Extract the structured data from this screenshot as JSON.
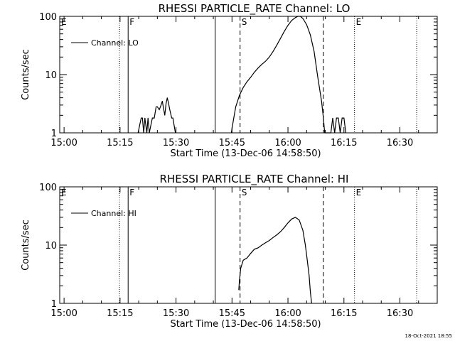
{
  "footer_stamp": "18-Oct-2021 18:55",
  "chart_data": [
    {
      "type": "line",
      "title": "RHESSI PARTICLE_RATE Channel: LO",
      "xlabel": "Start Time (13-Dec-06 14:58:50)",
      "ylabel": "Counts/sec",
      "yscale": "log",
      "ylim": [
        1,
        100
      ],
      "xlim": [
        "14:58:50",
        "16:40:00"
      ],
      "x_ticks": [
        "15:00",
        "15:15",
        "15:30",
        "15:45",
        "16:00",
        "16:15",
        "16:30"
      ],
      "y_ticks": [
        "1",
        "10",
        "100"
      ],
      "legend": {
        "label": "Channel: LO",
        "placement": "top-left"
      },
      "markers": [
        {
          "label": "E",
          "time": "14:58:50",
          "style": "dotted"
        },
        {
          "label": "",
          "time": "15:14:50",
          "style": "dotted"
        },
        {
          "label": "F",
          "time": "15:17:10",
          "style": "solid"
        },
        {
          "label": "",
          "time": "15:40:30",
          "style": "solid"
        },
        {
          "label": "S",
          "time": "15:47:10",
          "style": "dashed"
        },
        {
          "label": "",
          "time": "16:09:30",
          "style": "dashed"
        },
        {
          "label": "E",
          "time": "16:17:50",
          "style": "dotted"
        },
        {
          "label": "",
          "time": "16:34:30",
          "style": "dotted"
        }
      ],
      "series": [
        {
          "name": "Channel: LO",
          "x": [
            "15:19:50",
            "15:20:40",
            "15:21:00",
            "15:21:20",
            "15:21:40",
            "15:22:10",
            "15:22:30",
            "15:22:50",
            "15:23:40",
            "15:24:10",
            "15:24:40",
            "15:25:00",
            "15:25:30",
            "15:25:50",
            "15:26:20",
            "15:26:40",
            "15:27:00",
            "15:27:20",
            "15:27:40",
            "15:28:00",
            "15:28:20",
            "15:28:50",
            "15:29:10",
            "15:29:50",
            "15:44:50",
            "15:45:20",
            "15:46:00",
            "15:47:00",
            "15:48:00",
            "15:49:00",
            "15:50:00",
            "15:51:00",
            "15:52:00",
            "15:53:00",
            "15:54:00",
            "15:55:00",
            "15:56:00",
            "15:57:00",
            "15:58:00",
            "15:59:00",
            "16:00:00",
            "16:01:00",
            "16:02:00",
            "16:02:40",
            "16:03:20",
            "16:04:00",
            "16:05:00",
            "16:06:00",
            "16:07:00",
            "16:08:00",
            "16:09:00",
            "16:09:30",
            "16:09:50",
            "16:11:30",
            "16:12:00",
            "16:12:30",
            "16:13:00",
            "16:13:30",
            "16:14:00",
            "16:14:30",
            "16:15:00",
            "16:15:30"
          ],
          "values": [
            1,
            1.8,
            1.8,
            1,
            1.8,
            1,
            1.8,
            1,
            1.8,
            1.8,
            2.8,
            2.8,
            2.5,
            2.8,
            3.5,
            2.6,
            2,
            3.2,
            4,
            3.2,
            2.5,
            1.8,
            1.8,
            1,
            1,
            1.6,
            2.8,
            4.4,
            6,
            7.5,
            9,
            11,
            13,
            15,
            17,
            20,
            25,
            32,
            42,
            55,
            70,
            85,
            95,
            100,
            100,
            92,
            72,
            48,
            25,
            9,
            3.5,
            1.8,
            1,
            1,
            1.8,
            1,
            1.8,
            1.8,
            1,
            1.8,
            1.8,
            1
          ]
        }
      ]
    },
    {
      "type": "line",
      "title": "RHESSI PARTICLE_RATE Channel: HI",
      "xlabel": "Start Time (13-Dec-06 14:58:50)",
      "ylabel": "Counts/sec",
      "yscale": "log",
      "ylim": [
        1,
        100
      ],
      "xlim": [
        "14:58:50",
        "16:40:00"
      ],
      "x_ticks": [
        "15:00",
        "15:15",
        "15:30",
        "15:45",
        "16:00",
        "16:15",
        "16:30"
      ],
      "y_ticks": [
        "1",
        "10",
        "100"
      ],
      "legend": {
        "label": "Channel: HI",
        "placement": "top-left"
      },
      "markers": [
        {
          "label": "E",
          "time": "14:58:50",
          "style": "dotted"
        },
        {
          "label": "",
          "time": "15:14:50",
          "style": "dotted"
        },
        {
          "label": "F",
          "time": "15:17:10",
          "style": "solid"
        },
        {
          "label": "",
          "time": "15:40:30",
          "style": "solid"
        },
        {
          "label": "S",
          "time": "15:47:10",
          "style": "dashed"
        },
        {
          "label": "",
          "time": "16:09:30",
          "style": "dashed"
        },
        {
          "label": "E",
          "time": "16:17:50",
          "style": "dotted"
        },
        {
          "label": "",
          "time": "16:34:30",
          "style": "dotted"
        }
      ],
      "series": [
        {
          "name": "Channel: HI",
          "x": [
            "15:46:50",
            "15:47:00",
            "15:47:20",
            "15:48:00",
            "15:49:00",
            "15:50:00",
            "15:51:00",
            "15:52:00",
            "15:53:00",
            "15:54:00",
            "15:55:00",
            "15:56:00",
            "15:57:00",
            "15:58:00",
            "15:59:00",
            "16:00:00",
            "16:01:00",
            "16:02:00",
            "16:03:00",
            "16:04:00",
            "16:04:40",
            "16:05:10",
            "16:05:40",
            "16:06:00",
            "16:06:20"
          ],
          "values": [
            1.7,
            2.5,
            4,
            5.5,
            6,
            7.2,
            8.5,
            9,
            10,
            11,
            12,
            13.5,
            15,
            17,
            20,
            24,
            28,
            30,
            27,
            18,
            10,
            5.5,
            3,
            1.6,
            1
          ]
        }
      ]
    }
  ]
}
